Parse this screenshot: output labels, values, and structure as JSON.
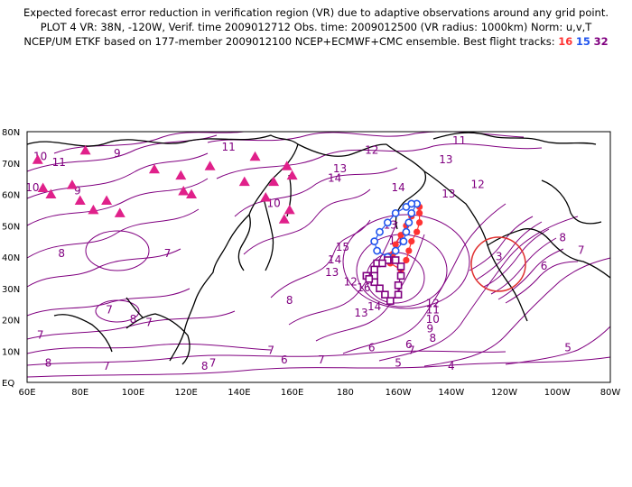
{
  "title": {
    "line1": "Expected forecast error reduction in verification region (VR) due to adaptive observations around any grid point.",
    "line2": "PLOT 4 VR: 38N, -120W, Verif. time 2009012712 Obs. time: 2009012500 (VR radius: 1000km) Norm: u,v,T",
    "line3_prefix": "NCEP/UM ETKF based on 177-member 2009012100 NCEP+ECMWF+CMC ensemble. Best flight tracks:",
    "track_red": "16",
    "track_blue": "15",
    "track_purple": "32"
  },
  "axes": {
    "lat_labels": [
      "80N",
      "70N",
      "60N",
      "50N",
      "40N",
      "30N",
      "20N",
      "10N",
      "EQ"
    ],
    "lon_labels": [
      "60E",
      "80E",
      "100E",
      "120E",
      "140E",
      "160E",
      "180",
      "160W",
      "140W",
      "120W",
      "100W",
      "80W"
    ]
  },
  "colors": {
    "contour": "#800080",
    "triangles": "#e0208a",
    "track_red": "#ff3333",
    "track_blue": "#2255ee",
    "track_purple": "#800080",
    "verification_circle": "#e03030"
  },
  "map_data": {
    "lat_range": [
      0,
      80
    ],
    "lon_range_east": [
      60,
      280
    ],
    "verification_region": {
      "lat": 38,
      "lon": -120,
      "radius_km": 1000
    },
    "contour_labels": [
      {
        "t": "9",
        "lat": 72,
        "lon": 94
      },
      {
        "t": "10",
        "lat": 71,
        "lon": 65
      },
      {
        "t": "11",
        "lat": 69,
        "lon": 72
      },
      {
        "t": "10",
        "lat": 61,
        "lon": 62
      },
      {
        "t": "9",
        "lat": 60,
        "lon": 79
      },
      {
        "t": "8",
        "lat": 40,
        "lon": 73
      },
      {
        "t": "7",
        "lat": 40,
        "lon": 113
      },
      {
        "t": "7",
        "lat": 14,
        "lon": 65
      },
      {
        "t": "7",
        "lat": 22,
        "lon": 91
      },
      {
        "t": "8",
        "lat": 5,
        "lon": 68
      },
      {
        "t": "7",
        "lat": 4,
        "lon": 90
      },
      {
        "t": "8",
        "lat": 4,
        "lon": 127
      },
      {
        "t": "7",
        "lat": 5,
        "lon": 130
      },
      {
        "t": "7",
        "lat": 9,
        "lon": 152
      },
      {
        "t": "6",
        "lat": 6,
        "lon": 157
      },
      {
        "t": "7",
        "lat": 6,
        "lon": 171
      },
      {
        "t": "5",
        "lat": 5,
        "lon": 200
      },
      {
        "t": "5",
        "lat": 10,
        "lon": 264
      },
      {
        "t": "4",
        "lat": 4,
        "lon": 220
      },
      {
        "t": "6",
        "lat": 10,
        "lon": 190
      },
      {
        "t": "8",
        "lat": 25,
        "lon": 159
      },
      {
        "t": "11",
        "lat": 74,
        "lon": 136
      },
      {
        "t": "10",
        "lat": 56,
        "lon": 153
      },
      {
        "t": "13",
        "lat": 67,
        "lon": 178
      },
      {
        "t": "14",
        "lat": 64,
        "lon": 176
      },
      {
        "t": "12",
        "lat": 73,
        "lon": 190
      },
      {
        "t": "13",
        "lat": 70,
        "lon": 218
      },
      {
        "t": "14",
        "lat": 61,
        "lon": 200
      },
      {
        "t": "13",
        "lat": 59,
        "lon": 219
      },
      {
        "t": "11",
        "lat": 76,
        "lon": 223
      },
      {
        "t": "12",
        "lat": 62,
        "lon": 230
      },
      {
        "t": "14",
        "lat": 44,
        "lon": 199
      },
      {
        "t": "15",
        "lat": 42,
        "lon": 179
      },
      {
        "t": "14",
        "lat": 38,
        "lon": 176
      },
      {
        "t": "13",
        "lat": 34,
        "lon": 175
      },
      {
        "t": "12",
        "lat": 31,
        "lon": 182
      },
      {
        "t": "13",
        "lat": 21,
        "lon": 186
      },
      {
        "t": "14",
        "lat": 23,
        "lon": 191
      },
      {
        "t": "16",
        "lat": 29,
        "lon": 187
      },
      {
        "t": "13",
        "lat": 49,
        "lon": 197
      },
      {
        "t": "12",
        "lat": 24,
        "lon": 213
      },
      {
        "t": "11",
        "lat": 22,
        "lon": 213
      },
      {
        "t": "10",
        "lat": 19,
        "lon": 213
      },
      {
        "t": "9",
        "lat": 16,
        "lon": 212
      },
      {
        "t": "8",
        "lat": 13,
        "lon": 213
      },
      {
        "t": "7",
        "lat": 9,
        "lon": 205
      },
      {
        "t": "6",
        "lat": 11,
        "lon": 204
      },
      {
        "t": "8",
        "lat": 45,
        "lon": 262
      },
      {
        "t": "7",
        "lat": 41,
        "lon": 269
      },
      {
        "t": "6",
        "lat": 36,
        "lon": 255
      },
      {
        "t": "3",
        "lat": 39,
        "lon": 238
      },
      {
        "t": "8",
        "lat": 19,
        "lon": 100
      },
      {
        "t": "7",
        "lat": 18,
        "lon": 106
      }
    ],
    "receptor_triangles": [
      {
        "lat": 71,
        "lon": 64
      },
      {
        "lat": 74,
        "lon": 82
      },
      {
        "lat": 68,
        "lon": 108
      },
      {
        "lat": 66,
        "lon": 118
      },
      {
        "lat": 69,
        "lon": 129
      },
      {
        "lat": 72,
        "lon": 146
      },
      {
        "lat": 69,
        "lon": 158
      },
      {
        "lat": 66,
        "lon": 160
      },
      {
        "lat": 61,
        "lon": 119
      },
      {
        "lat": 60,
        "lon": 122
      },
      {
        "lat": 64,
        "lon": 142
      },
      {
        "lat": 64,
        "lon": 153
      },
      {
        "lat": 59,
        "lon": 150
      },
      {
        "lat": 60,
        "lon": 69
      },
      {
        "lat": 58,
        "lon": 80
      },
      {
        "lat": 58,
        "lon": 90
      },
      {
        "lat": 63,
        "lon": 77
      },
      {
        "lat": 55,
        "lon": 85
      },
      {
        "lat": 54,
        "lon": 95
      },
      {
        "lat": 55,
        "lon": 159
      },
      {
        "lat": 52,
        "lon": 157
      },
      {
        "lat": 62,
        "lon": 66
      }
    ],
    "track_red_points": [
      {
        "lat": 56,
        "lon": 208
      },
      {
        "lat": 54,
        "lon": 208
      },
      {
        "lat": 51,
        "lon": 208
      },
      {
        "lat": 48,
        "lon": 207
      },
      {
        "lat": 45,
        "lon": 205
      },
      {
        "lat": 42,
        "lon": 204
      },
      {
        "lat": 39,
        "lon": 203
      },
      {
        "lat": 36,
        "lon": 201
      },
      {
        "lat": 38,
        "lon": 197
      },
      {
        "lat": 41,
        "lon": 198
      },
      {
        "lat": 44,
        "lon": 199
      },
      {
        "lat": 47,
        "lon": 201
      },
      {
        "lat": 50,
        "lon": 203
      },
      {
        "lat": 53,
        "lon": 205
      }
    ],
    "track_blue_points": [
      {
        "lat": 57,
        "lon": 207
      },
      {
        "lat": 54,
        "lon": 205
      },
      {
        "lat": 51,
        "lon": 204
      },
      {
        "lat": 48,
        "lon": 203
      },
      {
        "lat": 45,
        "lon": 202
      },
      {
        "lat": 42,
        "lon": 199
      },
      {
        "lat": 40,
        "lon": 196
      },
      {
        "lat": 42,
        "lon": 192
      },
      {
        "lat": 45,
        "lon": 191
      },
      {
        "lat": 48,
        "lon": 193
      },
      {
        "lat": 51,
        "lon": 196
      },
      {
        "lat": 54,
        "lon": 199
      },
      {
        "lat": 56,
        "lon": 203
      },
      {
        "lat": 57,
        "lon": 205
      }
    ],
    "track_purple_points": [
      {
        "lat": 38,
        "lon": 192
      },
      {
        "lat": 36,
        "lon": 191
      },
      {
        "lat": 34,
        "lon": 191
      },
      {
        "lat": 32,
        "lon": 191
      },
      {
        "lat": 30,
        "lon": 193
      },
      {
        "lat": 28,
        "lon": 195
      },
      {
        "lat": 26,
        "lon": 197
      },
      {
        "lat": 28,
        "lon": 200
      },
      {
        "lat": 31,
        "lon": 200
      },
      {
        "lat": 34,
        "lon": 201
      },
      {
        "lat": 37,
        "lon": 201
      },
      {
        "lat": 39,
        "lon": 199
      },
      {
        "lat": 39,
        "lon": 196
      },
      {
        "lat": 38,
        "lon": 194
      },
      {
        "lat": 34,
        "lon": 188
      },
      {
        "lat": 33,
        "lon": 189
      }
    ]
  }
}
